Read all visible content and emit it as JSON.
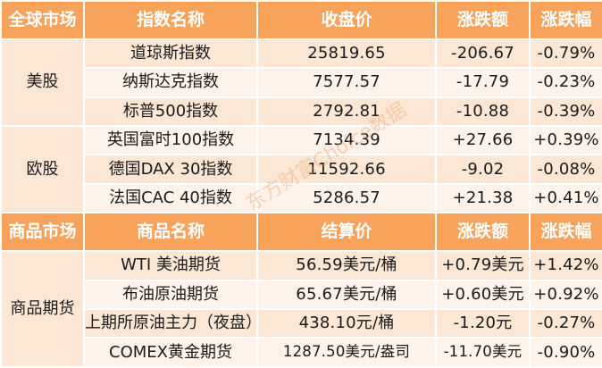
{
  "global_markets": {
    "headers": [
      "全球市场",
      "指数名称",
      "收盘价",
      "涨跌额",
      "涨跌幅"
    ],
    "groups": [
      {
        "market": "美股",
        "rows": [
          {
            "name": "道琼斯指数",
            "price": "25819.65",
            "change": "-206.67",
            "pct": "-0.79%"
          },
          {
            "name": "纳斯达克指数",
            "price": "7577.57",
            "change": "-17.79",
            "pct": "-0.23%"
          },
          {
            "name": "标普500指数",
            "price": "2792.81",
            "change": "-10.88",
            "pct": "-0.39%"
          }
        ]
      },
      {
        "market": "欧股",
        "rows": [
          {
            "name": "英国富时100指数",
            "price": "7134.39",
            "change": "+27.66",
            "pct": "+0.39%"
          },
          {
            "name": "德国DAX 30指数",
            "price": "11592.66",
            "change": "-9.02",
            "pct": "-0.08%"
          },
          {
            "name": "法国CAC 40指数",
            "price": "5286.57",
            "change": "+21.38",
            "pct": "+0.41%"
          }
        ]
      }
    ]
  },
  "commodity_markets": {
    "headers": [
      "商品市场",
      "商品名称",
      "结算价",
      "涨跌额",
      "涨跌幅"
    ],
    "groups": [
      {
        "market": "商品期货",
        "rows": [
          {
            "name": "WTI 美油期货",
            "price": "56.59美元/桶",
            "change": "+0.79美元",
            "pct": "+1.42%"
          },
          {
            "name": "布油原油期货",
            "price": "65.67美元/桶",
            "change": "+0.60美元",
            "pct": "+0.92%"
          },
          {
            "name": "上期所原油主力（夜盘）",
            "price": "438.10元/桶",
            "change": "-1.20元",
            "pct": "-0.27%"
          },
          {
            "name": "COMEX黄金期货",
            "price": "1287.50美元/盎司",
            "change": "-11.70美元",
            "pct": "-0.90%"
          }
        ]
      }
    ]
  },
  "watermark": "东方财富Choice数据",
  "colors": {
    "header_bg": "#f7a35c",
    "row_bg_a": "#fce7d4",
    "row_bg_b": "#fdf3ea",
    "text": "#1a1a1a"
  }
}
